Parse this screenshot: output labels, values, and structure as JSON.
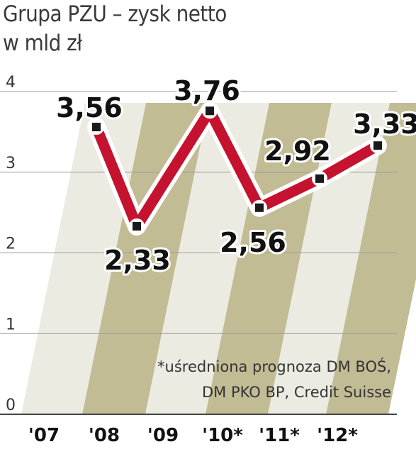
{
  "title": {
    "line1": "Grupa PZU – zysk netto",
    "line2": "w mld zł"
  },
  "footnote": {
    "line1": "*uśredniona prognoza DM BOŚ,",
    "line2": "DM PKO BP, Credit Suisse"
  },
  "colors": {
    "line": "#c4122f",
    "band_olive": "#c2bc95",
    "band_light": "#ebebe2",
    "axis": "#444444"
  },
  "chart_data": {
    "type": "line",
    "title": "Grupa PZU – zysk netto",
    "subtitle": "w mld zł",
    "categories": [
      "'07",
      "'08",
      "'09",
      "'10*",
      "'11*",
      "'12*"
    ],
    "values": [
      3.56,
      2.33,
      3.76,
      2.56,
      2.92,
      3.33
    ],
    "value_labels": [
      "3,56",
      "2,33",
      "3,76",
      "2,56",
      "2,92",
      "3,33"
    ],
    "yticks": [
      "0",
      "1",
      "2",
      "3",
      "4"
    ],
    "ylim": [
      0,
      4
    ],
    "grid": true,
    "legend": "none"
  }
}
